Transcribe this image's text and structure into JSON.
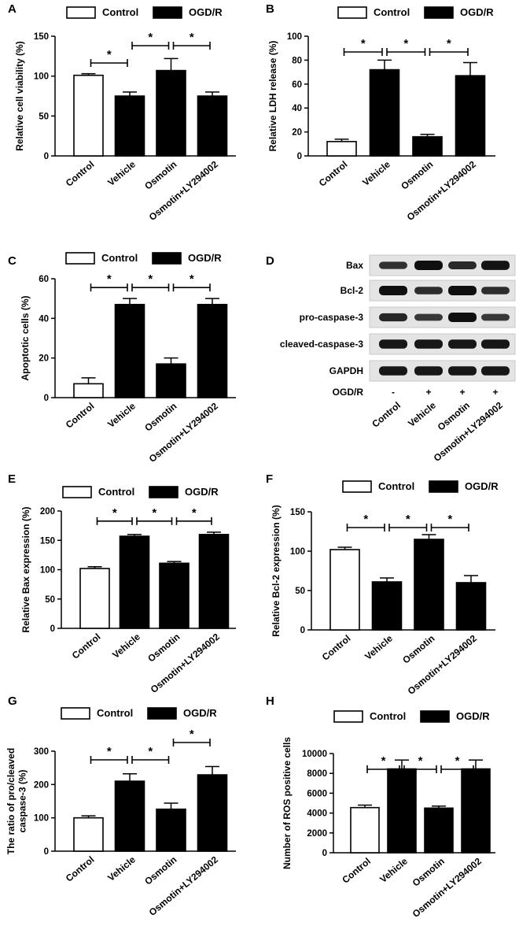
{
  "legend": {
    "control": "Control",
    "treated": "OGD/R"
  },
  "categories": [
    "Control",
    "Vehicle",
    "Osmotin",
    "Osmotin+LY294002"
  ],
  "significance_marker": "*",
  "chart_data": [
    {
      "panel": "A",
      "type": "bar",
      "ylabel": "Relative cell viability (%)",
      "ylim": [
        0,
        150
      ],
      "yticks": [
        0,
        50,
        100,
        150
      ],
      "series": [
        {
          "name": "Control",
          "values": [
            101,
            null,
            null,
            null
          ],
          "errors": [
            2,
            null,
            null,
            null
          ]
        },
        {
          "name": "OGD/R",
          "values": [
            null,
            75,
            107,
            75
          ],
          "errors": [
            null,
            5,
            15,
            5
          ]
        }
      ],
      "comparisons": [
        [
          0,
          1
        ],
        [
          1,
          2
        ],
        [
          2,
          3
        ]
      ]
    },
    {
      "panel": "B",
      "type": "bar",
      "ylabel": "Relative LDH release (%)",
      "ylim": [
        0,
        100
      ],
      "yticks": [
        0,
        20,
        40,
        60,
        80,
        100
      ],
      "series": [
        {
          "name": "Control",
          "values": [
            12,
            null,
            null,
            null
          ],
          "errors": [
            2,
            null,
            null,
            null
          ]
        },
        {
          "name": "OGD/R",
          "values": [
            null,
            72,
            16,
            67
          ],
          "errors": [
            null,
            8,
            2,
            11
          ]
        }
      ],
      "comparisons": [
        [
          0,
          1
        ],
        [
          1,
          2
        ],
        [
          2,
          3
        ]
      ]
    },
    {
      "panel": "C",
      "type": "bar",
      "ylabel": "Apoptotic cells (%)",
      "ylim": [
        0,
        60
      ],
      "yticks": [
        0,
        20,
        40,
        60
      ],
      "series": [
        {
          "name": "Control",
          "values": [
            7,
            null,
            null,
            null
          ],
          "errors": [
            3,
            null,
            null,
            null
          ]
        },
        {
          "name": "OGD/R",
          "values": [
            null,
            47,
            17,
            47
          ],
          "errors": [
            null,
            3,
            3,
            3
          ]
        }
      ],
      "comparisons": [
        [
          0,
          1
        ],
        [
          1,
          2
        ],
        [
          2,
          3
        ]
      ]
    },
    {
      "panel": "E",
      "type": "bar",
      "ylabel": "Relative Bax expression (%)",
      "ylim": [
        0,
        200
      ],
      "yticks": [
        0,
        50,
        100,
        150,
        200
      ],
      "series": [
        {
          "name": "Control",
          "values": [
            102,
            null,
            null,
            null
          ],
          "errors": [
            3,
            null,
            null,
            null
          ]
        },
        {
          "name": "OGD/R",
          "values": [
            null,
            157,
            111,
            160
          ],
          "errors": [
            null,
            3,
            3,
            4
          ]
        }
      ],
      "comparisons": [
        [
          0,
          1
        ],
        [
          1,
          2
        ],
        [
          2,
          3
        ]
      ]
    },
    {
      "panel": "F",
      "type": "bar",
      "ylabel": "Relative Bcl-2 expression (%)",
      "ylim": [
        0,
        150
      ],
      "yticks": [
        0,
        50,
        100,
        150
      ],
      "series": [
        {
          "name": "Control",
          "values": [
            102,
            null,
            null,
            null
          ],
          "errors": [
            3,
            null,
            null,
            null
          ]
        },
        {
          "name": "OGD/R",
          "values": [
            null,
            61,
            115,
            60
          ],
          "errors": [
            null,
            5,
            6,
            9
          ]
        }
      ],
      "comparisons": [
        [
          0,
          1
        ],
        [
          1,
          2
        ],
        [
          2,
          3
        ]
      ]
    },
    {
      "panel": "G",
      "type": "bar",
      "ylabel": "The ratio of pro/cleaved caspase-3 (%)",
      "ylim": [
        0,
        300
      ],
      "yticks": [
        0,
        100,
        200,
        300
      ],
      "series": [
        {
          "name": "Control",
          "values": [
            100,
            null,
            null,
            null
          ],
          "errors": [
            6,
            null,
            null,
            null
          ]
        },
        {
          "name": "OGD/R",
          "values": [
            null,
            210,
            126,
            229
          ],
          "errors": [
            null,
            22,
            18,
            25
          ]
        }
      ],
      "comparisons": [
        [
          0,
          1
        ],
        [
          1,
          2
        ],
        [
          2,
          3
        ]
      ]
    },
    {
      "panel": "H",
      "type": "bar",
      "ylabel": "Number of ROS positive cells",
      "ylim": [
        0,
        10000
      ],
      "yticks": [
        0,
        2000,
        4000,
        6000,
        8000,
        10000
      ],
      "series": [
        {
          "name": "Control",
          "values": [
            4550,
            null,
            null,
            null
          ],
          "errors": [
            250,
            null,
            null,
            null
          ]
        },
        {
          "name": "OGD/R",
          "values": [
            null,
            8450,
            4500,
            8450
          ],
          "errors": [
            null,
            900,
            200,
            900
          ]
        }
      ],
      "comparisons": [
        [
          0,
          1
        ],
        [
          1,
          2
        ],
        [
          2,
          3
        ]
      ]
    }
  ],
  "blot": {
    "panel": "D",
    "proteins": [
      "Bax",
      "Bcl-2",
      "pro-caspase-3",
      "cleaved-caspase-3",
      "GAPDH"
    ],
    "condition_label": "OGD/R",
    "condition_signs": [
      "-",
      "+",
      "+",
      "+"
    ],
    "lanes": [
      "Control",
      "Vehicle",
      "Osmotin",
      "Osmotin+LY294002"
    ],
    "band_intensity": [
      [
        0.55,
        1.0,
        0.65,
        0.95
      ],
      [
        1.0,
        0.6,
        1.0,
        0.6
      ],
      [
        0.7,
        0.45,
        1.0,
        0.45
      ],
      [
        0.9,
        0.9,
        0.9,
        0.9
      ],
      [
        0.9,
        0.9,
        0.9,
        0.9
      ]
    ]
  }
}
